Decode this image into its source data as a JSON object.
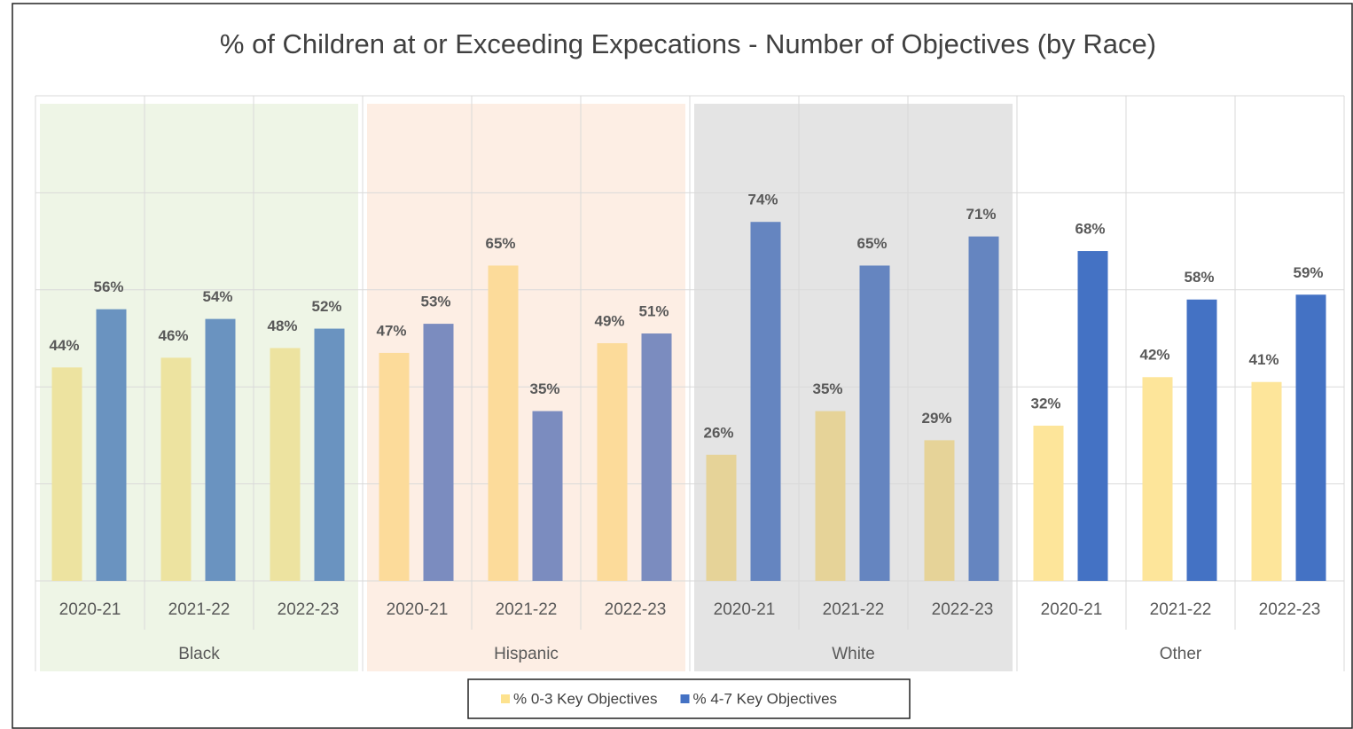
{
  "chart_data": {
    "type": "bar",
    "title": "% of Children at or Exceeding Expecations - Number of Objectives (by Race)",
    "categories": [
      "2020-21",
      "2021-22",
      "2022-23",
      "2020-21",
      "2021-22",
      "2022-23",
      "2020-21",
      "2021-22",
      "2022-23",
      "2020-21",
      "2021-22",
      "2022-23"
    ],
    "groups": [
      "Black",
      "Hispanic",
      "White",
      "Other"
    ],
    "group_backgrounds": [
      "#eef5e6",
      "#fdeee4",
      "#e4e4e4",
      null
    ],
    "series": [
      {
        "name": "% 0-3 Key Objectives",
        "color": "#fde28e",
        "bar_colors": [
          "#ede3a0",
          "#ede3a0",
          "#ede3a0",
          "#fcdb9a",
          "#fcdb9a",
          "#fcdb9a",
          "#e6d398",
          "#e6d398",
          "#e6d398",
          "#fde59a",
          "#fde59a",
          "#fde59a"
        ],
        "values": [
          44,
          46,
          48,
          47,
          65,
          49,
          26,
          35,
          29,
          32,
          42,
          41
        ],
        "value_labels": [
          "44%",
          "46%",
          "48%",
          "47%",
          "65%",
          "49%",
          "26%",
          "35%",
          "29%",
          "32%",
          "42%",
          "41%"
        ]
      },
      {
        "name": "% 4-7 Key Objectives",
        "color": "#4472c4",
        "bar_colors": [
          "#6a93c0",
          "#6a93c0",
          "#6a93c0",
          "#7b8cbf",
          "#7b8cbf",
          "#7b8cbf",
          "#6585c0",
          "#6585c0",
          "#6585c0",
          "#4472c4",
          "#4472c4",
          "#4472c4"
        ],
        "values": [
          56,
          54,
          52,
          53,
          35,
          51,
          74,
          65,
          71,
          68,
          58,
          59
        ],
        "value_labels": [
          "56%",
          "54%",
          "52%",
          "53%",
          "35%",
          "51%",
          "74%",
          "65%",
          "71%",
          "68%",
          "58%",
          "59%"
        ]
      }
    ],
    "ylim": [
      0,
      100
    ],
    "yticks": [
      0,
      20,
      40,
      60,
      80,
      100
    ],
    "grid": true,
    "legend": "bottom"
  }
}
